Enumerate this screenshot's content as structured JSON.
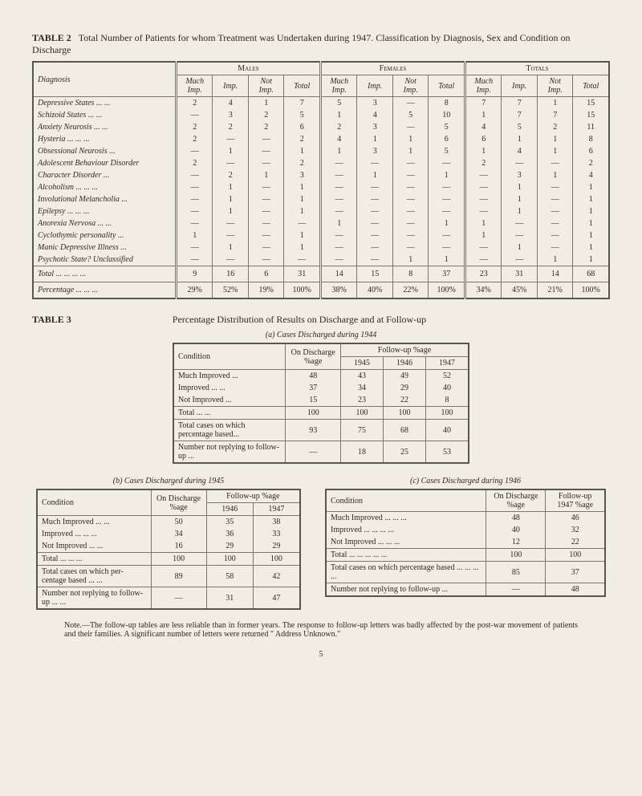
{
  "table2": {
    "label": "TABLE 2",
    "title": "Total Number of Patients for whom Treatment was Undertaken during 1947.  Classification by Diagnosis, Sex and Condition on Discharge",
    "group_headers": [
      "Males",
      "Females",
      "Totals"
    ],
    "sub_headers": [
      "Much Imp.",
      "Imp.",
      "Not Imp.",
      "Total"
    ],
    "diagnosis_header": "Diagnosis",
    "rows": [
      {
        "d": "Depressive States   ...   ...",
        "m": [
          "2",
          "4",
          "1",
          "7"
        ],
        "f": [
          "5",
          "3",
          "—",
          "8"
        ],
        "t": [
          "7",
          "7",
          "1",
          "15"
        ]
      },
      {
        "d": "Schizoid States   ...   ...",
        "m": [
          "—",
          "3",
          "2",
          "5"
        ],
        "f": [
          "1",
          "4",
          "5",
          "10"
        ],
        "t": [
          "1",
          "7",
          "7",
          "15"
        ]
      },
      {
        "d": "Anxiety Neurosis   ...   ...",
        "m": [
          "2",
          "2",
          "2",
          "6"
        ],
        "f": [
          "2",
          "3",
          "—",
          "5"
        ],
        "t": [
          "4",
          "5",
          "2",
          "11"
        ]
      },
      {
        "d": "Hysteria   ...   ...   ...",
        "m": [
          "2",
          "—",
          "—",
          "2"
        ],
        "f": [
          "4",
          "1",
          "1",
          "6"
        ],
        "t": [
          "6",
          "1",
          "1",
          "8"
        ]
      },
      {
        "d": "Obsessional Neurosis   ...",
        "m": [
          "—",
          "1",
          "—",
          "1"
        ],
        "f": [
          "1",
          "3",
          "1",
          "5"
        ],
        "t": [
          "1",
          "4",
          "1",
          "6"
        ]
      },
      {
        "d": "Adolescent Behaviour Disorder",
        "m": [
          "2",
          "—",
          "—",
          "2"
        ],
        "f": [
          "—",
          "—",
          "—",
          "—"
        ],
        "t": [
          "2",
          "—",
          "—",
          "2"
        ]
      },
      {
        "d": "Character Disorder   ...",
        "m": [
          "—",
          "2",
          "1",
          "3"
        ],
        "f": [
          "—",
          "1",
          "—",
          "1"
        ],
        "t": [
          "—",
          "3",
          "1",
          "4"
        ]
      },
      {
        "d": "Alcoholism ...   ...   ...",
        "m": [
          "—",
          "1",
          "—",
          "1"
        ],
        "f": [
          "—",
          "—",
          "—",
          "—"
        ],
        "t": [
          "—",
          "1",
          "—",
          "1"
        ]
      },
      {
        "d": "Involutional Melancholia ...",
        "m": [
          "—",
          "1",
          "—",
          "1"
        ],
        "f": [
          "—",
          "—",
          "—",
          "—"
        ],
        "t": [
          "—",
          "1",
          "—",
          "1"
        ]
      },
      {
        "d": "Epilepsy   ...   ...   ...",
        "m": [
          "—",
          "1",
          "—",
          "1"
        ],
        "f": [
          "—",
          "—",
          "—",
          "—"
        ],
        "t": [
          "—",
          "1",
          "—",
          "1"
        ]
      },
      {
        "d": "Anorexia Nervosa ...   ...",
        "m": [
          "—",
          "—",
          "—",
          "—"
        ],
        "f": [
          "1",
          "—",
          "—",
          "1"
        ],
        "t": [
          "1",
          "—",
          "—",
          "1"
        ]
      },
      {
        "d": "Cyclothymic personality  ...",
        "m": [
          "1",
          "—",
          "—",
          "1"
        ],
        "f": [
          "—",
          "—",
          "—",
          "—"
        ],
        "t": [
          "1",
          "—",
          "—",
          "1"
        ]
      },
      {
        "d": "Manic Depressive Illness  ...",
        "m": [
          "—",
          "1",
          "—",
          "1"
        ],
        "f": [
          "—",
          "—",
          "—",
          "—"
        ],
        "t": [
          "—",
          "1",
          "—",
          "1"
        ]
      },
      {
        "d": "Psychotic State? Unclassified",
        "m": [
          "—",
          "—",
          "—",
          "—"
        ],
        "f": [
          "—",
          "—",
          "1",
          "1"
        ],
        "t": [
          "—",
          "—",
          "1",
          "1"
        ]
      }
    ],
    "total_label": "Total ...   ...   ...   ...",
    "totals": {
      "m": [
        "9",
        "16",
        "6",
        "31"
      ],
      "f": [
        "14",
        "15",
        "8",
        "37"
      ],
      "t": [
        "23",
        "31",
        "14",
        "68"
      ]
    },
    "pct_label": "Percentage   ...   ...   ...",
    "pcts": {
      "m": [
        "29%",
        "52%",
        "19%",
        "100%"
      ],
      "f": [
        "38%",
        "40%",
        "22%",
        "100%"
      ],
      "t": [
        "34%",
        "45%",
        "21%",
        "100%"
      ]
    }
  },
  "table3": {
    "label": "TABLE 3",
    "title": "Percentage Distribution of Results on Discharge and at Follow-up",
    "a_caption": "(a) Cases Discharged during 1944",
    "b_caption": "(b) Cases Discharged during 1945",
    "c_caption": "(c) Cases Discharged during 1946",
    "a": {
      "cond_header": "Condition",
      "on_header": "On Discharge %age",
      "fu_header": "Follow-up %age",
      "years": [
        "1945",
        "1946",
        "1947"
      ],
      "rows": [
        {
          "c": "Much Improved   ...",
          "v": [
            "48",
            "43",
            "49",
            "52"
          ]
        },
        {
          "c": "Improved   ...   ...",
          "v": [
            "37",
            "34",
            "29",
            "40"
          ]
        },
        {
          "c": "Not Improved   ...",
          "v": [
            "15",
            "23",
            "22",
            "8"
          ]
        }
      ],
      "total": {
        "c": "Total   ...   ...",
        "v": [
          "100",
          "100",
          "100",
          "100"
        ]
      },
      "based": {
        "c": "Total cases on which percentage based...",
        "v": [
          "93",
          "75",
          "68",
          "40"
        ]
      },
      "noreply": {
        "c": "Number not replying to follow-up   ...",
        "v": [
          "—",
          "18",
          "25",
          "53"
        ]
      }
    },
    "b": {
      "cond_header": "Condition",
      "on_header": "On Discharge %age",
      "fu_header": "Follow-up %age",
      "years": [
        "1946",
        "1947"
      ],
      "rows": [
        {
          "c": "Much Improved ...   ...",
          "v": [
            "50",
            "35",
            "38"
          ]
        },
        {
          "c": "Improved ...   ...   ...",
          "v": [
            "34",
            "36",
            "33"
          ]
        },
        {
          "c": "Not Improved   ...   ...",
          "v": [
            "16",
            "29",
            "29"
          ]
        }
      ],
      "total": {
        "c": "Total   ...   ...   ...",
        "v": [
          "100",
          "100",
          "100"
        ]
      },
      "based": {
        "c": "Total cases on which per- centage based ...   ...",
        "v": [
          "89",
          "58",
          "42"
        ]
      },
      "noreply": {
        "c": "Number not replying to follow-up   ...   ...",
        "v": [
          "—",
          "31",
          "47"
        ]
      }
    },
    "c": {
      "cond_header": "Condition",
      "on_header": "On Discharge %age",
      "fu_header": "Follow-up 1947 %age",
      "rows": [
        {
          "c": "Much Improved   ...   ...   ...",
          "v": [
            "48",
            "46"
          ]
        },
        {
          "c": "Improved   ...   ...   ...   ...",
          "v": [
            "40",
            "32"
          ]
        },
        {
          "c": "Not Improved   ...   ...   ...",
          "v": [
            "12",
            "22"
          ]
        }
      ],
      "total": {
        "c": "Total   ...   ...   ...   ...   ...",
        "v": [
          "100",
          "100"
        ]
      },
      "based": {
        "c": "Total cases on which percentage based   ...   ...   ...   ...",
        "v": [
          "85",
          "37"
        ]
      },
      "noreply": {
        "c": "Number not replying to follow-up ...",
        "v": [
          "—",
          "48"
        ]
      }
    }
  },
  "note": "Note.—The follow-up tables are less reliable than in former years.  The response to follow-up letters was badly affected by the post-war movement of patients and their families.  A significant number of letters were returned \" Address Unknown.\"",
  "pagenum": "5"
}
